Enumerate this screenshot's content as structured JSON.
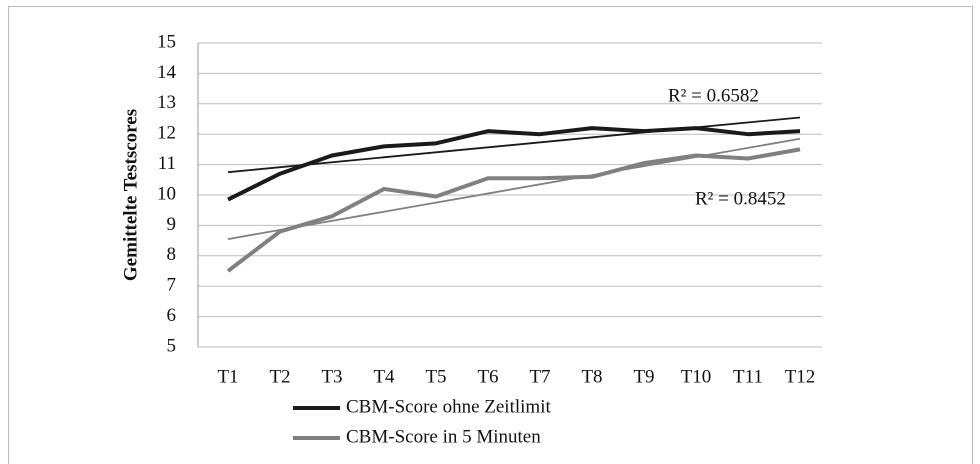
{
  "chart_data": {
    "type": "line",
    "y_label": "Gemittelte Testscores",
    "categories": [
      "T1",
      "T2",
      "T3",
      "T4",
      "T5",
      "T6",
      "T7",
      "T8",
      "T9",
      "T10",
      "T11",
      "T12"
    ],
    "series": [
      {
        "name": "CBM-Score ohne Zeitlimit",
        "color": "#1a1a1a",
        "values": [
          9.85,
          10.7,
          11.3,
          11.6,
          11.7,
          12.1,
          12.0,
          12.2,
          12.1,
          12.2,
          12.0,
          12.1
        ],
        "trend": {
          "start": 10.75,
          "end": 12.55,
          "label": "R² = 0.6582"
        }
      },
      {
        "name": "CBM-Score in 5 Minuten",
        "color": "#808080",
        "values": [
          7.5,
          8.8,
          9.3,
          10.2,
          9.95,
          10.55,
          10.55,
          10.6,
          11.05,
          11.3,
          11.2,
          11.5
        ],
        "trend": {
          "start": 8.55,
          "end": 11.85,
          "label": "R² = 0.8452"
        }
      }
    ],
    "ylim": [
      5,
      15
    ],
    "yticks": [
      5,
      6,
      7,
      8,
      9,
      10,
      11,
      12,
      13,
      14,
      15
    ],
    "grid": true
  }
}
